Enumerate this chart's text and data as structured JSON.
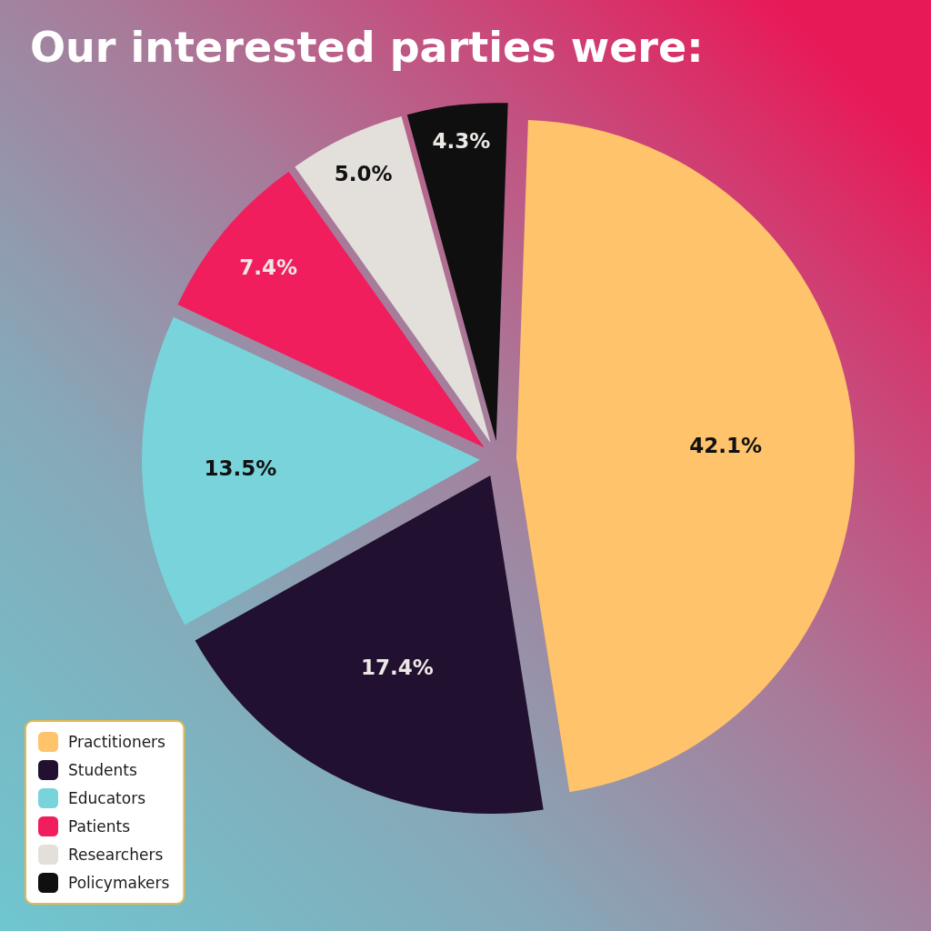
{
  "chart_data": {
    "type": "pie",
    "title": "Our interested parties were:",
    "categories": [
      "Practitioners",
      "Students",
      "Educators",
      "Patients",
      "Researchers",
      "Policymakers"
    ],
    "values": [
      42.1,
      17.4,
      13.5,
      7.4,
      5.0,
      4.3
    ],
    "value_labels": [
      "42.1%",
      "17.4%",
      "13.5%",
      "7.4%",
      "5.0%",
      "4.3%"
    ],
    "colors": [
      "#fec36b",
      "#21102f",
      "#78d4da",
      "#f01e5d",
      "#e3dfdb",
      "#0f0f0f"
    ],
    "legend": "bottom left"
  }
}
